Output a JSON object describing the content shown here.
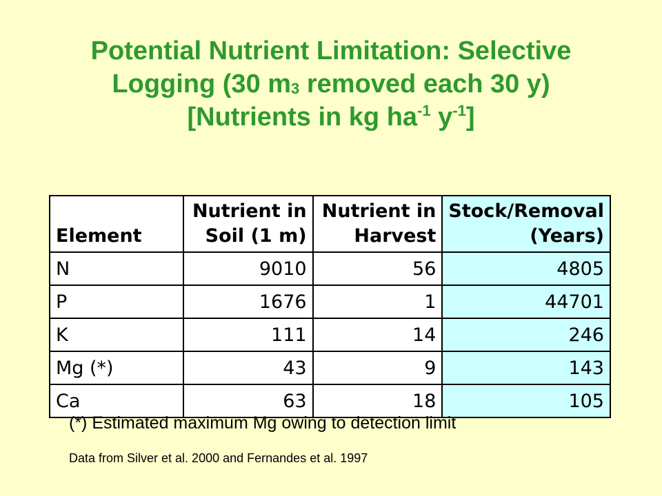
{
  "title": {
    "line1": "Potential Nutrient Limitation: Selective",
    "line2_pre": "Logging (30 m",
    "line2_sub": "3",
    "line2_post": " removed each 30 y)",
    "line3_pre": "[Nutrients in kg ha",
    "line3_sup1": "-1",
    "line3_mid": " y",
    "line3_sup2": "-1",
    "line3_post": "]"
  },
  "table": {
    "headers": {
      "element": "Element",
      "soil_line1": "Nutrient in",
      "soil_line2": "Soil (1 m)",
      "harvest_line1": "Nutrient in",
      "harvest_line2": "Harvest",
      "ratio_line1": "Stock/Removal",
      "ratio_line2": "(Years)"
    },
    "rows": [
      {
        "element": "N",
        "soil": "9010",
        "harvest": "56",
        "ratio": "4805"
      },
      {
        "element": "P",
        "soil": "1676",
        "harvest": "1",
        "ratio": "44701"
      },
      {
        "element": "K",
        "soil": "111",
        "harvest": "14",
        "ratio": "246"
      },
      {
        "element": "Mg (*)",
        "soil": "43",
        "harvest": "9",
        "ratio": "143"
      },
      {
        "element": "Ca",
        "soil": "63",
        "harvest": "18",
        "ratio": "105"
      }
    ]
  },
  "note": "(*) Estimated maximum Mg owing to detection limit",
  "source": "Data from Silver et al. 2000 and Fernandes et al. 1997",
  "colors": {
    "background": "#ffffcc",
    "title": "#2e9a2e",
    "highlight_column": "#ccffff"
  }
}
